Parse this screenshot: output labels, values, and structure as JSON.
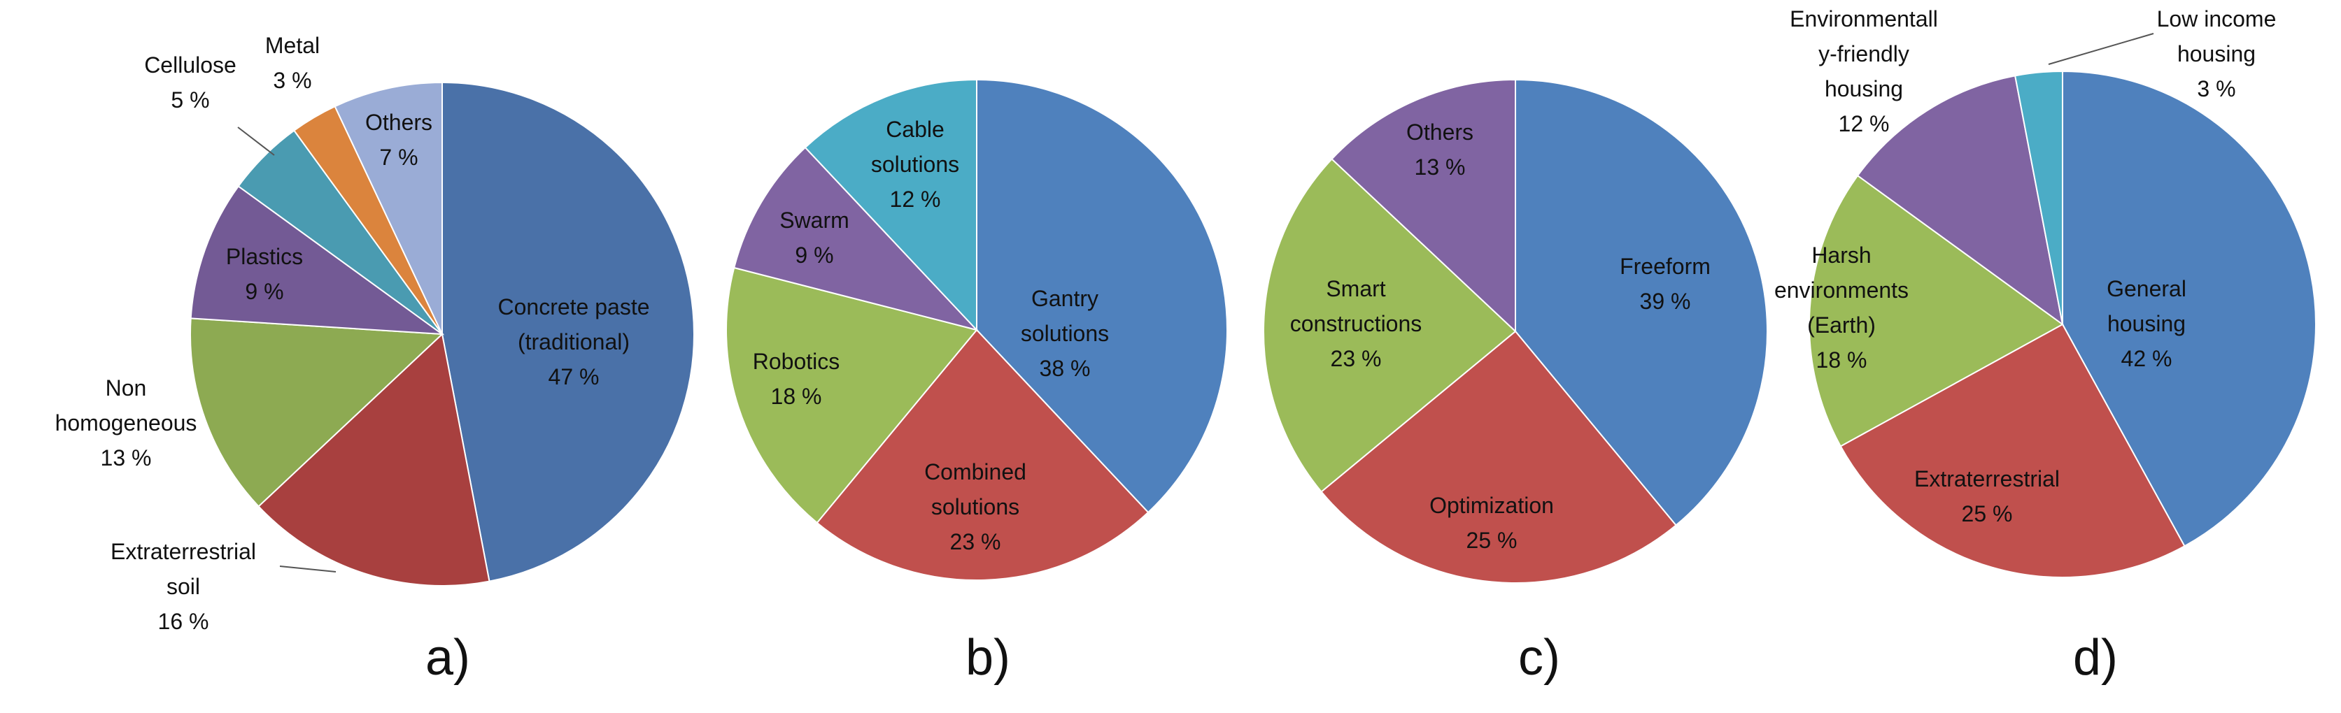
{
  "chart_data": [
    {
      "type": "pie",
      "caption": "a)",
      "start_angle_deg": 0,
      "slices": [
        {
          "name": "Concrete paste (traditional)",
          "label_lines": [
            "Concrete paste",
            "(traditional)"
          ],
          "value": 47,
          "value_label": "47 %",
          "color": "#4A71A8"
        },
        {
          "name": "Extraterrestrial soil",
          "label_lines": [
            "Extraterrestrial",
            "soil"
          ],
          "value": 16,
          "value_label": "16 %",
          "color": "#A8403F"
        },
        {
          "name": "Non homogeneous",
          "label_lines": [
            "Non",
            "homogeneous"
          ],
          "value": 13,
          "value_label": "13 %",
          "color": "#8DAA52"
        },
        {
          "name": "Plastics",
          "label_lines": [
            "Plastics"
          ],
          "value": 9,
          "value_label": "9 %",
          "color": "#735A95"
        },
        {
          "name": "Cellulose",
          "label_lines": [
            "Cellulose"
          ],
          "value": 5,
          "value_label": "5 %",
          "color": "#4A9BB1"
        },
        {
          "name": "Metal",
          "label_lines": [
            "Metal"
          ],
          "value": 3,
          "value_label": "3 %",
          "color": "#DB843D"
        },
        {
          "name": "Others",
          "label_lines": [
            "Others"
          ],
          "value": 7,
          "value_label": "7 %",
          "color": "#9AACD6"
        }
      ]
    },
    {
      "type": "pie",
      "caption": "b)",
      "start_angle_deg": 0,
      "slices": [
        {
          "name": "Gantry solutions",
          "label_lines": [
            "Gantry",
            "solutions"
          ],
          "value": 38,
          "value_label": "38 %",
          "color": "#4F81BD"
        },
        {
          "name": "Combined solutions",
          "label_lines": [
            "Combined",
            "solutions"
          ],
          "value": 23,
          "value_label": "23 %",
          "color": "#C0504D"
        },
        {
          "name": "Robotics",
          "label_lines": [
            "Robotics"
          ],
          "value": 18,
          "value_label": "18 %",
          "color": "#9BBB59"
        },
        {
          "name": "Swarm",
          "label_lines": [
            "Swarm"
          ],
          "value": 9,
          "value_label": "9 %",
          "color": "#8064A2"
        },
        {
          "name": "Cable solutions",
          "label_lines": [
            "Cable",
            "solutions"
          ],
          "value": 12,
          "value_label": "12 %",
          "color": "#4BACC6"
        }
      ]
    },
    {
      "type": "pie",
      "caption": "c)",
      "start_angle_deg": 0,
      "slices": [
        {
          "name": "Freeform",
          "label_lines": [
            "Freeform"
          ],
          "value": 39,
          "value_label": "39 %",
          "color": "#4F81BD"
        },
        {
          "name": "Optimization",
          "label_lines": [
            "Optimization"
          ],
          "value": 25,
          "value_label": "25 %",
          "color": "#C0504D"
        },
        {
          "name": "Smart constructions",
          "label_lines": [
            "Smart",
            "constructions"
          ],
          "value": 23,
          "value_label": "23 %",
          "color": "#9BBB59"
        },
        {
          "name": "Others",
          "label_lines": [
            "Others"
          ],
          "value": 13,
          "value_label": "13 %",
          "color": "#8064A2"
        }
      ]
    },
    {
      "type": "pie",
      "caption": "d)",
      "start_angle_deg": 0,
      "slices": [
        {
          "name": "General housing",
          "label_lines": [
            "General",
            "housing"
          ],
          "value": 42,
          "value_label": "42 %",
          "color": "#4F81BD"
        },
        {
          "name": "Extraterrestrial",
          "label_lines": [
            "Extraterrestrial"
          ],
          "value": 25,
          "value_label": "25 %",
          "color": "#C0504D"
        },
        {
          "name": "Harsh environments (Earth)",
          "label_lines": [
            "Harsh",
            "environments",
            "(Earth)"
          ],
          "value": 18,
          "value_label": "18 %",
          "color": "#9BBB59"
        },
        {
          "name": "Environmentally-friendly housing",
          "label_lines": [
            "Environmentall",
            "y-friendly",
            "housing"
          ],
          "value": 12,
          "value_label": "12 %",
          "color": "#8064A2"
        },
        {
          "name": "Low income housing",
          "label_lines": [
            "Low income",
            "housing"
          ],
          "value": 3,
          "value_label": "3 %",
          "color": "#4BACC6"
        }
      ]
    }
  ]
}
